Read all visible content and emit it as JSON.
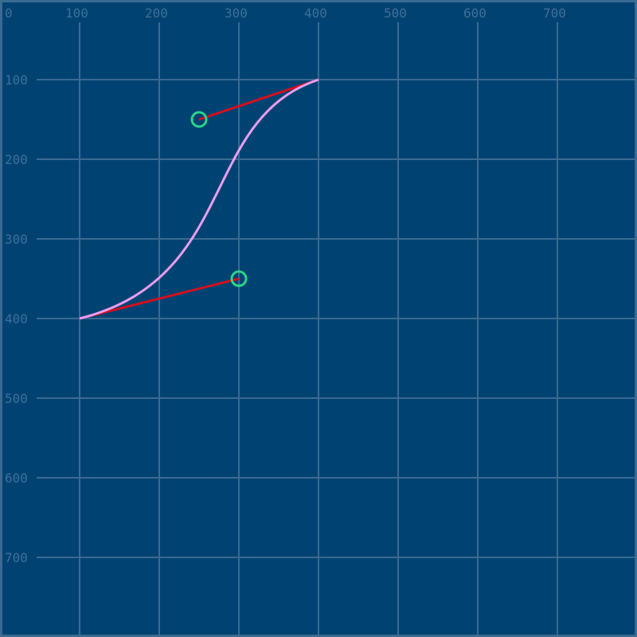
{
  "grid": {
    "x_ticks": [
      0,
      100,
      200,
      300,
      400,
      500,
      600,
      700
    ],
    "y_ticks": [
      100,
      200,
      300,
      400,
      500,
      600,
      700
    ],
    "step": 100,
    "extent": 800
  },
  "curve": {
    "start": [
      100,
      400
    ],
    "control1": [
      300,
      350
    ],
    "control2": [
      250,
      150
    ],
    "end": [
      400,
      100
    ]
  },
  "colors": {
    "background": "#004372",
    "grid": "#3b6a92",
    "labels": "#3f6f98",
    "curve": "#e99df2",
    "handle_lines": "#d40f1f",
    "control_points": "#2bd38b"
  }
}
